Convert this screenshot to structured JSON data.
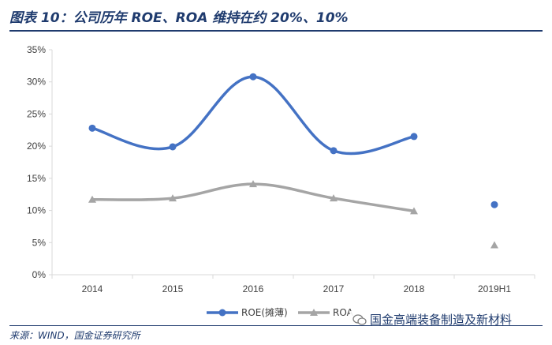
{
  "figure": {
    "title": "图表 10：公司历年 ROE、ROA 维持在约 20%、10%",
    "source": "来源：WIND，国金证券研究所",
    "watermark": "国金高端装备制造及新材料"
  },
  "colors": {
    "roe": "#4472c4",
    "roa": "#a5a5a5",
    "title": "#1f3b6e",
    "axis": "#d9d9d9"
  },
  "chart_data": {
    "type": "line",
    "title": "",
    "categories": [
      "2014",
      "2015",
      "2016",
      "2017",
      "2018",
      "2019H1"
    ],
    "ylim": [
      0,
      35
    ],
    "yticks": [
      0,
      5,
      10,
      15,
      20,
      25,
      30,
      35
    ],
    "ytick_labels": [
      "0%",
      "5%",
      "10%",
      "15%",
      "20%",
      "25%",
      "30%",
      "35%"
    ],
    "grid": false,
    "legend": "bottom",
    "series": [
      {
        "name": "ROE(摊薄)",
        "marker": "circle",
        "smooth": true,
        "connected_count": 5,
        "values": [
          22.8,
          19.9,
          30.8,
          19.3,
          21.5,
          10.9
        ]
      },
      {
        "name": "ROA",
        "marker": "triangle",
        "smooth": true,
        "connected_count": 5,
        "values": [
          11.7,
          11.9,
          14.1,
          11.9,
          9.9,
          4.6
        ]
      }
    ]
  }
}
